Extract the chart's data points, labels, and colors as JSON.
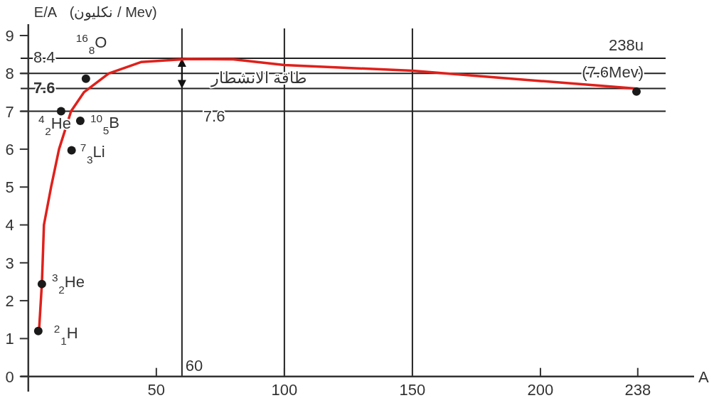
{
  "chart_data": {
    "type": "line",
    "xlabel": "A",
    "ylabel": "E/A",
    "xlim": [
      -3,
      260
    ],
    "ylim": [
      -0.4,
      9.3
    ],
    "xticks": [
      50,
      100,
      150,
      200,
      238
    ],
    "yticks": [
      0,
      1,
      2,
      3,
      4,
      5,
      6,
      7,
      8,
      9
    ],
    "series": [
      {
        "color": "#e0201b",
        "marker": "none",
        "x": [
          4.2,
          5.3,
          5.6,
          6.1,
          8.9,
          12,
          16.7,
          21.7,
          31.4,
          44,
          62,
          80,
          100,
          150,
          200,
          237
        ],
        "values": [
          1.22,
          2.45,
          3,
          4,
          5,
          6,
          7,
          7.5,
          8,
          8.3,
          8.38,
          8.37,
          8.22,
          8.07,
          7.8,
          7.6
        ]
      },
      {
        "type": "scatter",
        "color": "#1a1a1a",
        "marker": "circle",
        "x": [
          3.9,
          5.3,
          12.8,
          16.9,
          20.3,
          22.5,
          237.5
        ],
        "values": [
          1.2,
          2.44,
          7.0,
          5.97,
          6.75,
          7.86,
          7.52
        ]
      }
    ],
    "ref_lines": [
      {
        "axis": "y",
        "value": 8.4,
        "label": "8.4",
        "color": "#222222"
      },
      {
        "axis": "y",
        "value": 8,
        "color": "#222222"
      },
      {
        "axis": "y",
        "value": 7.6,
        "label": "7.6",
        "color": "#222222"
      },
      {
        "axis": "y",
        "value": 7,
        "color": "#222222"
      },
      {
        "axis": "x",
        "value": 60,
        "label": "60",
        "color": "#222222"
      },
      {
        "axis": "x",
        "value": 100,
        "color": "#222222"
      },
      {
        "axis": "x",
        "value": 150,
        "color": "#222222"
      }
    ],
    "annotations": [
      "(نكليون / Mev)",
      {
        "text": "$^{2}$$_{1}$H",
        "x": 3.9,
        "y": 1.2
      },
      {
        "text": "$^{3}$$_{2}$He",
        "x": 5.3,
        "y": 2.44
      },
      {
        "text": "$^{4}$$_{2}$He",
        "x": 12.8,
        "y": 7.0
      },
      {
        "text": "$^{7}$$_{3}$Li",
        "x": 16.9,
        "y": 5.97
      },
      {
        "text": "$^{10}$$_{5}$B",
        "x": 20.3,
        "y": 6.75
      },
      {
        "text": "$^{16}$$_{8}$O",
        "x": 22.5,
        "y": 7.86
      },
      {
        "text": "طاقة الانشطار",
        "x": 60,
        "y": 8
      },
      {
        "text": "7.6",
        "x": 60,
        "y": 7
      },
      {
        "text": "238u",
        "x": 237.5,
        "y": 7.52
      },
      {
        "text": "(7.6Mev)",
        "x": 237.5,
        "y": 7.52
      }
    ]
  }
}
